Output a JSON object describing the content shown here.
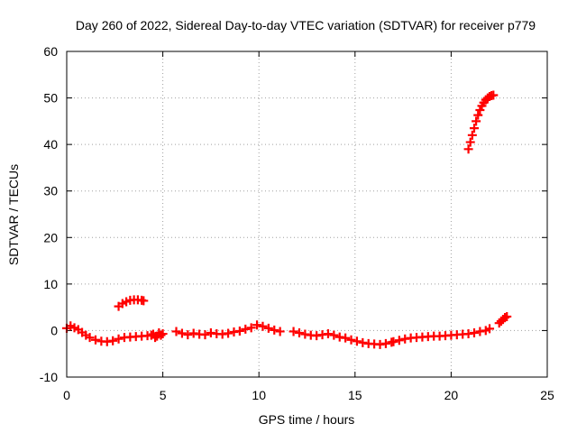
{
  "chart_data": {
    "type": "scatter",
    "title": "Day 260 of 2022, Sidereal Day-to-day VTEC variation (SDTVAR) for receiver p779",
    "xlabel": "GPS time / hours",
    "ylabel": "SDTVAR / TECUs",
    "xlim": [
      0,
      25
    ],
    "ylim": [
      -10,
      60
    ],
    "xticks": [
      0,
      5,
      10,
      15,
      20,
      25
    ],
    "yticks": [
      -10,
      0,
      10,
      20,
      30,
      40,
      50,
      60
    ],
    "grid": true,
    "marker": "plus",
    "colors": {
      "series": "#ff0000",
      "axes": "#000000",
      "grid": "#a0a0a0"
    },
    "series": [
      {
        "name": "SDTVAR",
        "segments": [
          {
            "x": [
              0.0,
              0.2,
              0.4,
              0.6,
              0.8,
              1.0,
              1.2,
              1.5,
              1.8,
              2.1,
              2.4,
              2.7,
              3.0,
              3.3,
              3.6,
              3.9,
              4.2,
              4.4
            ],
            "y": [
              0.5,
              1.0,
              0.6,
              0.2,
              -0.4,
              -1.0,
              -1.5,
              -2.0,
              -2.3,
              -2.4,
              -2.2,
              -1.8,
              -1.5,
              -1.4,
              -1.3,
              -1.2,
              -1.1,
              -1.0
            ]
          },
          {
            "x": [
              2.7,
              2.9,
              3.1,
              3.3,
              3.5,
              3.7,
              3.9,
              4.0
            ],
            "y": [
              5.2,
              5.8,
              6.2,
              6.5,
              6.6,
              6.6,
              6.5,
              6.4
            ]
          },
          {
            "x": [
              4.5,
              4.6,
              4.7,
              4.8,
              4.9,
              5.0
            ],
            "y": [
              -0.8,
              -1.5,
              -1.2,
              -0.5,
              -1.0,
              -0.7
            ]
          },
          {
            "x": [
              5.7,
              6.0,
              6.3,
              6.6,
              6.9,
              7.2,
              7.5,
              7.8,
              8.1,
              8.4,
              8.7,
              9.0,
              9.3,
              9.6,
              9.9,
              10.2,
              10.5,
              10.8,
              11.1
            ],
            "y": [
              -0.2,
              -0.6,
              -0.9,
              -0.6,
              -0.8,
              -0.9,
              -0.5,
              -0.7,
              -0.8,
              -0.6,
              -0.3,
              -0.1,
              0.3,
              0.6,
              1.2,
              0.9,
              0.5,
              0.1,
              -0.2
            ]
          },
          {
            "x": [
              11.8,
              12.1,
              12.4,
              12.7,
              13.0,
              13.3,
              13.6,
              13.9,
              14.2,
              14.5,
              14.8,
              15.1,
              15.4,
              15.7,
              16.0,
              16.3,
              16.6,
              16.9
            ],
            "y": [
              -0.2,
              -0.5,
              -0.8,
              -1.0,
              -1.1,
              -0.9,
              -0.7,
              -1.0,
              -1.4,
              -1.6,
              -2.0,
              -2.3,
              -2.6,
              -2.8,
              -2.9,
              -3.0,
              -2.8,
              -2.5
            ]
          },
          {
            "x": [
              17.0,
              17.3,
              17.6,
              17.9,
              18.2,
              18.5,
              18.8,
              19.1,
              19.4,
              19.7,
              20.0,
              20.3,
              20.6,
              20.9,
              21.2,
              21.5,
              21.8,
              22.0
            ],
            "y": [
              -2.4,
              -2.1,
              -1.8,
              -1.6,
              -1.5,
              -1.4,
              -1.3,
              -1.2,
              -1.2,
              -1.1,
              -1.0,
              -0.9,
              -0.8,
              -0.7,
              -0.5,
              -0.2,
              0.0,
              0.4
            ]
          },
          {
            "x": [
              22.5,
              22.6,
              22.7,
              22.8,
              22.9
            ],
            "y": [
              1.6,
              2.0,
              2.4,
              2.8,
              3.0
            ]
          },
          {
            "x": [
              20.9,
              21.0,
              21.1,
              21.2,
              21.3,
              21.4,
              21.5,
              21.6,
              21.7,
              21.8,
              21.9,
              22.0,
              22.1,
              22.2
            ],
            "y": [
              39.0,
              40.5,
              42.0,
              43.5,
              45.0,
              46.3,
              47.4,
              48.3,
              49.0,
              49.6,
              50.0,
              50.3,
              50.5,
              50.6
            ]
          }
        ]
      }
    ]
  }
}
